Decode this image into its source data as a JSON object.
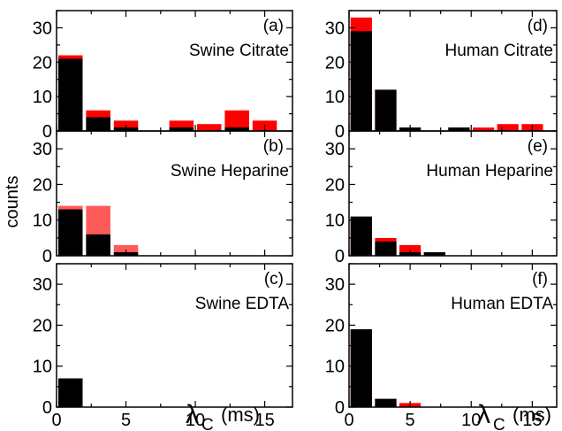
{
  "figure": {
    "ylabel": "counts",
    "xlabel": {
      "symbol": "λ",
      "subscript": "C",
      "unit": "(ms)"
    }
  },
  "colors": {
    "black": "#000000",
    "red": "#ff0000",
    "light_red": "#ff5a5a"
  },
  "chart_data": [
    {
      "type": "bar",
      "letter": "(a)",
      "label": "Swine Citrate",
      "x": [
        1,
        3,
        5,
        7,
        9,
        11,
        13,
        15
      ],
      "series": [
        {
          "values": [
            22,
            6,
            3,
            0,
            3,
            2,
            6,
            3
          ],
          "color": "#ff0000"
        },
        {
          "values": [
            21,
            4,
            1,
            0,
            1,
            0,
            1,
            0
          ],
          "color": "#000000"
        }
      ],
      "xlim": [
        0,
        17
      ],
      "ylim": [
        0,
        35
      ],
      "xticks": [
        "0",
        "5",
        "10",
        "15"
      ],
      "yticks": [
        "0",
        "10",
        "20",
        "30"
      ]
    },
    {
      "type": "bar",
      "letter": "(b)",
      "label": "Swine Heparine",
      "x": [
        1,
        3,
        5,
        7,
        9,
        11,
        13,
        15
      ],
      "series": [
        {
          "values": [
            14,
            14,
            3,
            0,
            0,
            0,
            0,
            0
          ],
          "color": "#ff5a5a"
        },
        {
          "values": [
            13,
            6,
            1,
            0,
            0,
            0,
            0,
            0
          ],
          "color": "#000000"
        }
      ],
      "xlim": [
        0,
        17
      ],
      "ylim": [
        0,
        35
      ],
      "xticks": [
        "0",
        "5",
        "10",
        "15"
      ],
      "yticks": [
        "0",
        "10",
        "20",
        "30"
      ]
    },
    {
      "type": "bar",
      "letter": "(c)",
      "label": "Swine EDTA",
      "x": [
        1,
        3,
        5,
        7,
        9,
        11,
        13,
        15
      ],
      "series": [
        {
          "values": [
            7,
            0,
            0,
            0,
            0,
            0,
            0,
            0
          ],
          "color": "#ff0000"
        },
        {
          "values": [
            7,
            0,
            0,
            0,
            0,
            0,
            0,
            0
          ],
          "color": "#000000"
        }
      ],
      "xlim": [
        0,
        17
      ],
      "ylim": [
        0,
        35
      ],
      "xticks": [
        "0",
        "5",
        "10",
        "15"
      ],
      "yticks": [
        "0",
        "10",
        "20",
        "30"
      ]
    },
    {
      "type": "bar",
      "letter": "(d)",
      "label": "Human Citrate",
      "x": [
        1,
        3,
        5,
        7,
        9,
        11,
        13,
        15
      ],
      "series": [
        {
          "values": [
            33,
            12,
            1,
            0,
            1,
            1,
            2,
            2
          ],
          "color": "#ff0000"
        },
        {
          "values": [
            29,
            12,
            1,
            0,
            1,
            0,
            0,
            0
          ],
          "color": "#000000"
        }
      ],
      "xlim": [
        0,
        17
      ],
      "ylim": [
        0,
        35
      ],
      "xticks": [
        "0",
        "5",
        "10",
        "15"
      ],
      "yticks": [
        "0",
        "10",
        "20",
        "30"
      ]
    },
    {
      "type": "bar",
      "letter": "(e)",
      "label": "Human Heparine",
      "x": [
        1,
        3,
        5,
        7,
        9,
        11,
        13,
        15
      ],
      "series": [
        {
          "values": [
            11,
            5,
            3,
            1,
            0,
            0,
            0,
            0
          ],
          "color": "#ff0000"
        },
        {
          "values": [
            11,
            4,
            1,
            1,
            0,
            0,
            0,
            0
          ],
          "color": "#000000"
        }
      ],
      "xlim": [
        0,
        17
      ],
      "ylim": [
        0,
        35
      ],
      "xticks": [
        "0",
        "5",
        "10",
        "15"
      ],
      "yticks": [
        "0",
        "10",
        "20",
        "30"
      ]
    },
    {
      "type": "bar",
      "letter": "(f)",
      "label": "Human EDTA",
      "x": [
        1,
        3,
        5,
        7,
        9,
        11,
        13,
        15
      ],
      "series": [
        {
          "values": [
            19,
            2,
            1,
            0,
            0,
            0,
            0,
            0
          ],
          "color": "#ff0000"
        },
        {
          "values": [
            19,
            2,
            0,
            0,
            0,
            0,
            0,
            0
          ],
          "color": "#000000"
        }
      ],
      "xlim": [
        0,
        17
      ],
      "ylim": [
        0,
        35
      ],
      "xticks": [
        "0",
        "5",
        "10",
        "15"
      ],
      "yticks": [
        "0",
        "10",
        "20",
        "30"
      ]
    }
  ]
}
